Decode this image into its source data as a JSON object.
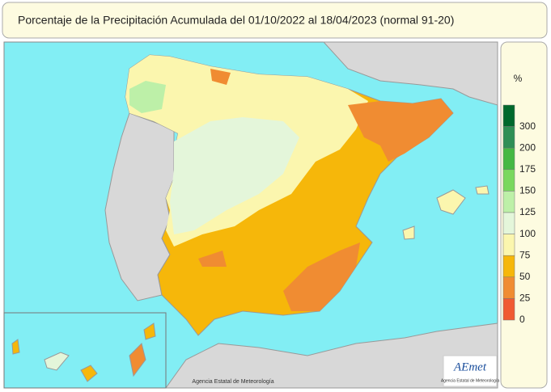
{
  "header": {
    "title": "Porcentaje de la Precipitación Acumulada del 01/10/2022 al 18/04/2023 (normal 91-20)"
  },
  "legend": {
    "unit": "%",
    "items": [
      {
        "label": 300,
        "color": "#00682c"
      },
      {
        "label": 200,
        "color": "#2f8f55"
      },
      {
        "label": 175,
        "color": "#45b843"
      },
      {
        "label": 150,
        "color": "#7ad85e"
      },
      {
        "label": 125,
        "color": "#bdf0a8"
      },
      {
        "label": 100,
        "color": "#e4f6da"
      },
      {
        "label": 75,
        "color": "#fbf6ae"
      },
      {
        "label": 50,
        "color": "#f6b70a"
      },
      {
        "label": 25,
        "color": "#f08c32"
      },
      {
        "label": 0,
        "color": "#f05a32"
      }
    ]
  },
  "credit": "Agencia Estatal de Meteorología",
  "logo": {
    "name": "AEmet",
    "subtitle": "Agencia Estatal de Meteorología"
  }
}
